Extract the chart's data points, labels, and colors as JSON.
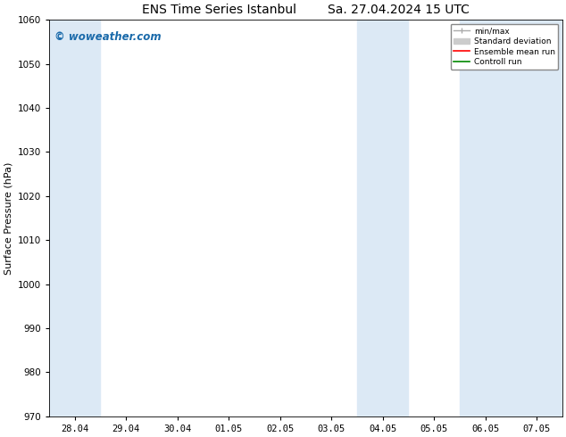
{
  "title": "ENS Time Series Istanbul        Sa. 27.04.2024 15 UTC",
  "ylabel": "Surface Pressure (hPa)",
  "ylim": [
    970,
    1060
  ],
  "yticks": [
    970,
    980,
    990,
    1000,
    1010,
    1020,
    1030,
    1040,
    1050,
    1060
  ],
  "xlim_start": -0.5,
  "xlim_end": 9.5,
  "xtick_labels": [
    "28.04",
    "29.04",
    "30.04",
    "01.05",
    "02.05",
    "03.05",
    "04.05",
    "05.05",
    "06.05",
    "07.05"
  ],
  "xtick_positions": [
    0,
    1,
    2,
    3,
    4,
    5,
    6,
    7,
    8,
    9
  ],
  "shaded_bands": [
    {
      "x_start": -0.5,
      "x_end": 0.5,
      "color": "#dce9f5"
    },
    {
      "x_start": 5.5,
      "x_end": 6.5,
      "color": "#dce9f5"
    },
    {
      "x_start": 7.5,
      "x_end": 8.5,
      "color": "#dce9f5"
    },
    {
      "x_start": 8.5,
      "x_end": 9.5,
      "color": "#dce9f5"
    }
  ],
  "watermark_text": "© woweather.com",
  "watermark_color": "#1a6aaa",
  "bg_color": "#ffffff",
  "plot_bg_color": "#ffffff",
  "grid_color": "#cccccc",
  "title_fontsize": 10,
  "axis_label_fontsize": 8,
  "tick_fontsize": 7.5,
  "legend_color_minmax": "#aaaaaa",
  "legend_color_std": "#cccccc",
  "legend_color_ens": "#ff0000",
  "legend_color_ctrl": "#008800"
}
